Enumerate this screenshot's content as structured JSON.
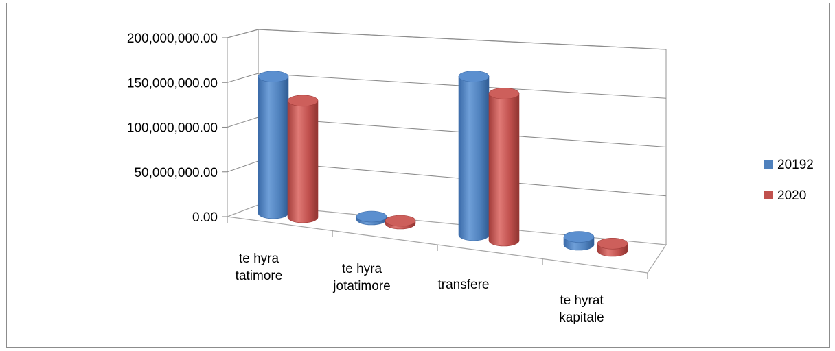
{
  "chart_data": {
    "type": "bar",
    "style": "3d-cylinder",
    "title": "",
    "xlabel": "",
    "ylabel": "",
    "categories": [
      [
        "te hyra",
        "tatimore"
      ],
      [
        "te hyra",
        "jotatimore"
      ],
      [
        "transfere"
      ],
      [
        "te hyrat",
        "kapitale"
      ]
    ],
    "series": [
      {
        "name": "20192",
        "color": "#4f81bd",
        "values": [
          130000000,
          1500000,
          151000000,
          7500000
        ]
      },
      {
        "name": "2020",
        "color": "#c0504d",
        "values": [
          111000000,
          1200000,
          140000000,
          7000000
        ]
      }
    ],
    "y_ticks": [
      "0.00",
      "50,000,000.00",
      "100,000,000.00",
      "150,000,000.00",
      "200,000,000.00"
    ],
    "ylim": [
      0,
      200000000
    ],
    "grid": true,
    "legend_position": "right"
  }
}
